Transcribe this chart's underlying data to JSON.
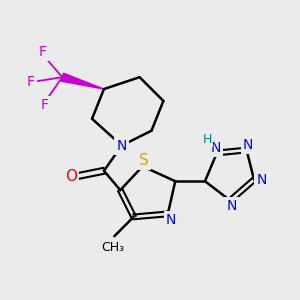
{
  "bg_color": "#ebebeb",
  "atom_colors": {
    "C": "#000000",
    "N": "#0000ff",
    "O": "#ff0000",
    "S": "#ccaa00",
    "F": "#cc00cc",
    "H": "#008080"
  },
  "bond_color": "#000000",
  "bond_width": 1.8,
  "font_size": 10,
  "fig_size": [
    3.0,
    3.0
  ],
  "dpi": 100,
  "xlim": [
    0,
    10
  ],
  "ylim": [
    0,
    10
  ]
}
